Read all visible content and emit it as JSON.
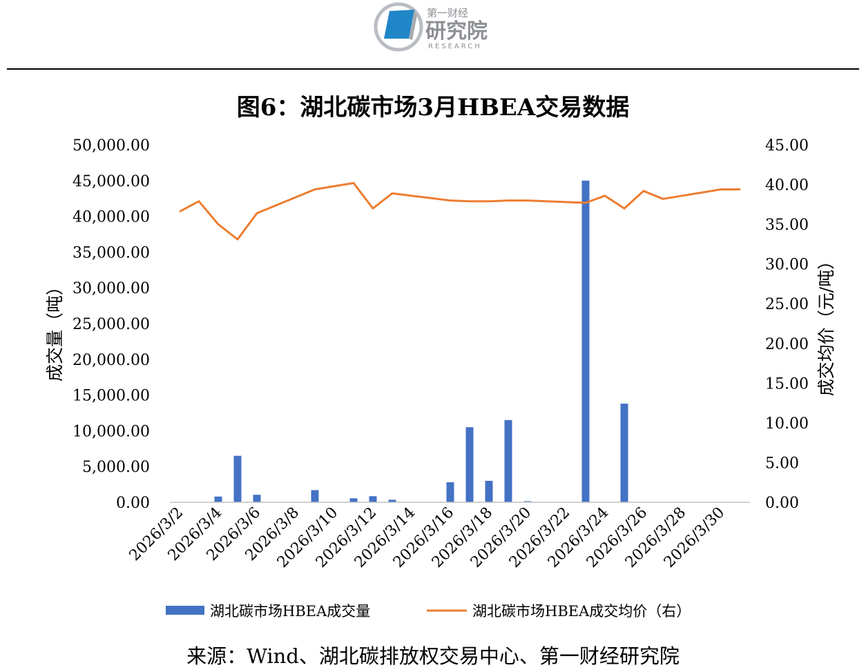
{
  "logo": {
    "top_text": "第一财经",
    "main_text": "研究院",
    "sub_text": "RESEARCH",
    "colors": {
      "blue": "#1f86c8",
      "ring": "#b9bdc3",
      "text": "#8c8f94"
    }
  },
  "title": "图6：湖北碳市场3月HBEA交易数据",
  "source": "来源：Wind、湖北碳排放权交易中心、第一财经研究院",
  "chart_data": {
    "type": "bar+line",
    "x": [
      "2026/3/2",
      "2026/3/3",
      "2026/3/4",
      "2026/3/5",
      "2026/3/6",
      "2026/3/7",
      "2026/3/8",
      "2026/3/9",
      "2026/3/10",
      "2026/3/11",
      "2026/3/12",
      "2026/3/13",
      "2026/3/14",
      "2026/3/15",
      "2026/3/16",
      "2026/3/17",
      "2026/3/18",
      "2026/3/19",
      "2026/3/20",
      "2026/3/21",
      "2026/3/22",
      "2026/3/23",
      "2026/3/24",
      "2026/3/25",
      "2026/3/26",
      "2026/3/27",
      "2026/3/28",
      "2026/3/29",
      "2026/3/30",
      "2026/3/31"
    ],
    "x_tick_labels": [
      "2026/3/2",
      "2026/3/4",
      "2026/3/6",
      "2026/3/8",
      "2026/3/10",
      "2026/3/12",
      "2026/3/14",
      "2026/3/16",
      "2026/3/18",
      "2026/3/20",
      "2026/3/22",
      "2026/3/24",
      "2026/3/26",
      "2026/3/28",
      "2026/3/30"
    ],
    "series": [
      {
        "name": "湖北碳市场HBEA成交量",
        "type": "bar",
        "axis": "left",
        "color": "#4472c4",
        "values": [
          0,
          0,
          800,
          6500,
          1050,
          0,
          0,
          1700,
          0,
          550,
          850,
          350,
          0,
          0,
          2800,
          10500,
          3000,
          11500,
          150,
          0,
          0,
          45000,
          0,
          13800,
          0,
          0,
          0,
          0,
          0,
          0
        ]
      },
      {
        "name": "湖北碳市场HBEA成交均价（右）",
        "type": "line",
        "axis": "right",
        "color": "#ed7d31",
        "values": [
          36.6,
          37.9,
          35.0,
          33.1,
          36.4,
          37.4,
          38.4,
          39.4,
          39.8,
          40.2,
          37.0,
          38.9,
          38.6,
          38.3,
          38.0,
          37.9,
          37.9,
          38.0,
          38.0,
          37.9,
          37.8,
          37.7,
          38.6,
          37.0,
          39.2,
          38.2,
          38.6,
          39.0,
          39.4,
          39.4
        ]
      }
    ],
    "y_left": {
      "label": "成交量（吨）",
      "range": [
        0,
        50000
      ],
      "ticks": [
        "0.00",
        "5,000.00",
        "10,000.00",
        "15,000.00",
        "20,000.00",
        "25,000.00",
        "30,000.00",
        "35,000.00",
        "40,000.00",
        "45,000.00",
        "50,000.00"
      ]
    },
    "y_right": {
      "label": "成交均价（元/吨）",
      "range": [
        0,
        45
      ],
      "ticks": [
        "0.00",
        "5.00",
        "10.00",
        "15.00",
        "20.00",
        "25.00",
        "30.00",
        "35.00",
        "40.00",
        "45.00"
      ]
    },
    "grid": false,
    "legend_position": "bottom"
  }
}
